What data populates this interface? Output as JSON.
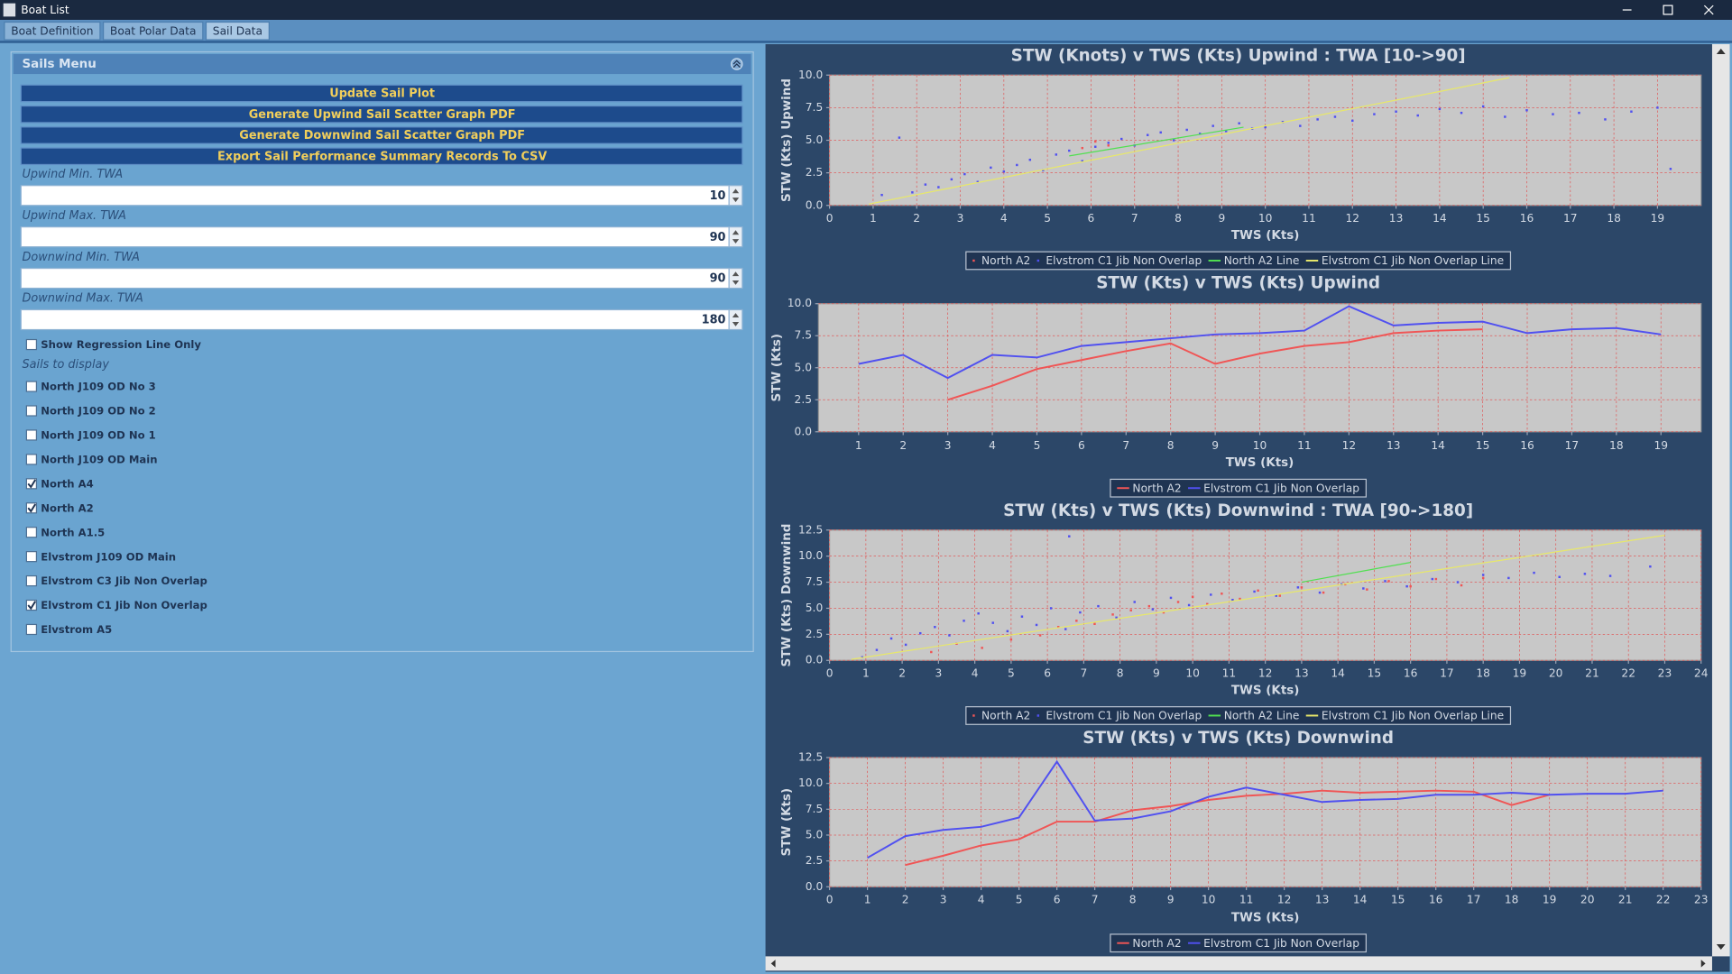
{
  "window": {
    "title": "Boat List"
  },
  "tabs": [
    {
      "label": "Boat Definition",
      "selected": false
    },
    {
      "label": "Boat Polar Data",
      "selected": false
    },
    {
      "label": "Sail Data",
      "selected": true
    }
  ],
  "sails_menu": {
    "title": "Sails Menu",
    "buttons": [
      "Update Sail Plot",
      "Generate Upwind Sail Scatter Graph PDF",
      "Generate Downwind Sail Scatter Graph PDF",
      "Export Sail Performance Summary Records To CSV"
    ],
    "fields": [
      {
        "label": "Upwind Min. TWA",
        "value": 10
      },
      {
        "label": "Upwind Max. TWA",
        "value": 90
      },
      {
        "label": "Downwind Min. TWA",
        "value": 90
      },
      {
        "label": "Downwind Max. TWA",
        "value": 180
      }
    ],
    "regression_option": {
      "label": "Show Regression Line Only",
      "checked": false
    },
    "sails_label": "Sails to display",
    "sails": [
      {
        "name": "North J109 OD No 3",
        "checked": false
      },
      {
        "name": "North J109 OD No 2",
        "checked": false
      },
      {
        "name": "North J109 OD No 1",
        "checked": false
      },
      {
        "name": "North J109 OD Main",
        "checked": false
      },
      {
        "name": "North A4",
        "checked": true
      },
      {
        "name": "North A2",
        "checked": true
      },
      {
        "name": "North A1.5",
        "checked": false
      },
      {
        "name": "Elvstrom J109 OD Main",
        "checked": false
      },
      {
        "name": "Elvstrom C3 Jib Non Overlap",
        "checked": false
      },
      {
        "name": "Elvstrom C1 Jib Non Overlap",
        "checked": true
      },
      {
        "name": "Elvstrom A5",
        "checked": false
      }
    ]
  },
  "chart_data": [
    {
      "type": "scatter",
      "title": "STW (Knots) v TWS (Kts) Upwind  : TWA [10->90]",
      "x_label": "TWS (Kts)",
      "y_label": "STW (Kts) Upwind",
      "xlim": [
        0,
        20
      ],
      "xticks": [
        0,
        1,
        2,
        3,
        4,
        5,
        6,
        7,
        8,
        9,
        10,
        11,
        12,
        13,
        14,
        15,
        16,
        17,
        18,
        19
      ],
      "ylim": [
        0,
        10
      ],
      "yticks": [
        {
          "value": 0,
          "label": "0.0"
        },
        2.5,
        {
          "value": 5,
          "label": "5.0"
        },
        7.5,
        {
          "value": 10,
          "label": "10.0"
        }
      ],
      "grid": true,
      "series": [
        {
          "name": "North A2",
          "color": "#f05555",
          "mark": "point",
          "x": [
            5.8,
            6.1,
            6.4
          ],
          "values": [
            4.4,
            4.9,
            4.6
          ]
        },
        {
          "name": "Elvstrom C1 Jib Non Overlap",
          "color": "#5050f0",
          "mark": "point",
          "x": [
            1.2,
            1.6,
            1.9,
            2.2,
            2.5,
            2.8,
            3.1,
            3.4,
            3.7,
            4.0,
            4.3,
            4.6,
            4.9,
            5.2,
            5.5,
            5.8,
            6.1,
            6.4,
            6.7,
            7.0,
            7.3,
            7.6,
            7.9,
            8.2,
            8.5,
            8.8,
            9.1,
            9.4,
            9.7,
            10.0,
            10.4,
            10.8,
            11.2,
            11.6,
            12.0,
            12.5,
            13.0,
            13.5,
            14.0,
            14.5,
            15.0,
            15.5,
            16.0,
            16.6,
            17.2,
            17.8,
            18.4,
            19.0,
            19.3
          ],
          "values": [
            0.8,
            5.2,
            1.0,
            1.6,
            1.4,
            2.0,
            2.4,
            1.8,
            2.9,
            2.6,
            3.1,
            3.5,
            2.7,
            3.9,
            4.2,
            3.4,
            4.5,
            4.8,
            5.1,
            4.6,
            5.4,
            5.6,
            5.0,
            5.8,
            5.5,
            6.1,
            5.7,
            6.3,
            5.9,
            6.0,
            6.4,
            6.1,
            6.6,
            6.8,
            6.5,
            7.0,
            7.2,
            6.9,
            7.4,
            7.1,
            7.6,
            6.8,
            7.3,
            7.0,
            7.1,
            6.6,
            7.2,
            7.5,
            2.8
          ]
        },
        {
          "name": "North A2 Line",
          "color": "#50e050",
          "mark": "line",
          "x": [
            5.5,
            9.5
          ],
          "values": [
            3.8,
            6.0
          ]
        },
        {
          "name": "Elvstrom C1 Jib Non Overlap Line",
          "color": "#e8e86a",
          "mark": "line",
          "x": [
            0.9,
            15.6
          ],
          "values": [
            0.1,
            9.8
          ]
        }
      ]
    },
    {
      "type": "line",
      "title": "STW (Kts) v TWS (Kts) Upwind",
      "x_label": "TWS (Kts)",
      "y_label": "STW (Kts)",
      "xlim": [
        0.1,
        19.9
      ],
      "xticks": [
        1,
        2,
        3,
        4,
        5,
        6,
        7,
        8,
        9,
        10,
        11,
        12,
        13,
        14,
        15,
        16,
        17,
        18,
        19
      ],
      "ylim": [
        0,
        10
      ],
      "yticks": [
        {
          "value": 0,
          "label": "0.0"
        },
        2.5,
        {
          "value": 5,
          "label": "5.0"
        },
        7.5,
        {
          "value": 10,
          "label": "10.0"
        }
      ],
      "grid": true,
      "series": [
        {
          "name": "North A2",
          "color": "#f05555",
          "x": [
            3,
            4,
            5,
            6,
            7,
            8,
            9,
            10,
            11,
            12,
            13,
            14,
            15
          ],
          "values": [
            2.5,
            3.6,
            4.9,
            5.6,
            6.3,
            6.9,
            5.3,
            6.1,
            6.7,
            7.0,
            7.7,
            7.9,
            8.0
          ]
        },
        {
          "name": "Elvstrom C1 Jib Non Overlap",
          "color": "#5050f0",
          "x": [
            1,
            2,
            3,
            4,
            5,
            6,
            7,
            8,
            9,
            10,
            11,
            12,
            13,
            14,
            15,
            16,
            17,
            18,
            19
          ],
          "values": [
            5.3,
            6.0,
            4.2,
            6.0,
            5.8,
            6.7,
            7.0,
            7.3,
            7.6,
            7.7,
            7.9,
            9.8,
            8.3,
            8.5,
            8.6,
            7.7,
            8.0,
            8.1,
            7.6
          ]
        }
      ]
    },
    {
      "type": "scatter",
      "title": "STW (Kts) v TWS (Kts) Downwind  : TWA [90->180]",
      "x_label": "TWS (Kts)",
      "y_label": "STW (Kts) Downwind",
      "xlim": [
        0,
        24
      ],
      "xticks": [
        0,
        1,
        2,
        3,
        4,
        5,
        6,
        7,
        8,
        9,
        10,
        11,
        12,
        13,
        14,
        15,
        16,
        17,
        18,
        19,
        20,
        21,
        22,
        23,
        24
      ],
      "ylim": [
        0,
        12.5
      ],
      "yticks": [
        {
          "value": 0,
          "label": "0.0"
        },
        2.5,
        {
          "value": 5,
          "label": "5.0"
        },
        7.5,
        {
          "value": 10,
          "label": "10.0"
        },
        12.5
      ],
      "grid": true,
      "series": [
        {
          "name": "North A2",
          "color": "#f05555",
          "mark": "point",
          "x": [
            2.8,
            3.5,
            4.2,
            5.0,
            5.8,
            6.3,
            6.8,
            7.3,
            7.8,
            8.3,
            8.8,
            9.2,
            9.6,
            10.0,
            10.4,
            10.8,
            11.3,
            11.8,
            12.4,
            13.0,
            13.6,
            14.2,
            14.8,
            15.4,
            16.0,
            16.7,
            17.4,
            18.0
          ],
          "values": [
            0.8,
            1.6,
            1.2,
            2.0,
            2.4,
            3.2,
            3.8,
            3.5,
            4.4,
            4.8,
            5.2,
            4.6,
            5.6,
            6.1,
            5.4,
            6.4,
            5.9,
            6.7,
            6.2,
            7.0,
            6.5,
            7.3,
            6.8,
            7.6,
            7.1,
            7.8,
            7.2,
            7.9
          ]
        },
        {
          "name": "Elvstrom C1 Jib Non Overlap",
          "color": "#5050f0",
          "mark": "point",
          "x": [
            0.9,
            1.3,
            1.7,
            2.1,
            2.5,
            2.9,
            3.3,
            3.7,
            4.1,
            4.5,
            4.9,
            5.3,
            5.7,
            6.1,
            6.5,
            6.9,
            7.4,
            7.9,
            8.4,
            8.9,
            9.4,
            9.9,
            10.5,
            11.1,
            11.7,
            12.3,
            12.9,
            13.5,
            14.1,
            14.7,
            15.3,
            15.9,
            16.6,
            17.3,
            18.0,
            18.7,
            19.4,
            20.1,
            20.8,
            21.5,
            22.6,
            6.6
          ],
          "values": [
            0.3,
            1.0,
            2.1,
            1.5,
            2.6,
            3.2,
            2.4,
            3.8,
            4.5,
            3.6,
            2.8,
            4.2,
            3.4,
            5.0,
            3.0,
            4.6,
            5.2,
            4.1,
            5.6,
            4.9,
            6.0,
            5.3,
            6.3,
            5.8,
            6.6,
            6.2,
            7.0,
            6.5,
            7.3,
            6.9,
            7.6,
            7.1,
            7.8,
            7.5,
            8.2,
            7.9,
            8.4,
            8.0,
            8.3,
            8.1,
            9.0,
            11.9
          ]
        },
        {
          "name": "North A2 Line",
          "color": "#50e050",
          "mark": "line",
          "x": [
            13,
            16
          ],
          "values": [
            7.5,
            9.4
          ]
        },
        {
          "name": "Elvstrom C1 Jib Non Overlap Line",
          "color": "#e8e86a",
          "mark": "line",
          "x": [
            0.6,
            23
          ],
          "values": [
            0.1,
            12.0
          ]
        }
      ]
    },
    {
      "type": "line",
      "title": "STW (Kts) v TWS (Kts) Downwind",
      "x_label": "TWS (Kts)",
      "y_label": "STW (Kts)",
      "xlim": [
        0,
        23
      ],
      "xticks": [
        0,
        1,
        2,
        3,
        4,
        5,
        6,
        7,
        8,
        9,
        10,
        11,
        12,
        13,
        14,
        15,
        16,
        17,
        18,
        19,
        20,
        21,
        22,
        23
      ],
      "ylim": [
        0,
        12.5
      ],
      "yticks": [
        {
          "value": 0,
          "label": "0.0"
        },
        2.5,
        {
          "value": 5,
          "label": "5.0"
        },
        7.5,
        {
          "value": 10,
          "label": "10.0"
        },
        12.5
      ],
      "grid": true,
      "series": [
        {
          "name": "North A2",
          "color": "#f05555",
          "x": [
            2,
            3,
            4,
            5,
            6,
            7,
            8,
            9,
            10,
            11,
            12,
            13,
            14,
            15,
            16,
            17,
            18,
            19
          ],
          "values": [
            2.1,
            3.0,
            4.0,
            4.6,
            6.3,
            6.3,
            7.4,
            7.8,
            8.4,
            8.8,
            9.0,
            9.3,
            9.1,
            9.2,
            9.3,
            9.2,
            7.9,
            8.9
          ]
        },
        {
          "name": "Elvstrom C1 Jib Non Overlap",
          "color": "#5050f0",
          "x": [
            1,
            2,
            3,
            4,
            5,
            6,
            7,
            8,
            9,
            10,
            11,
            12,
            13,
            14,
            15,
            16,
            17,
            18,
            19,
            20,
            21,
            22
          ],
          "values": [
            2.8,
            4.9,
            5.5,
            5.8,
            6.7,
            12.1,
            6.4,
            6.6,
            7.3,
            8.7,
            9.6,
            8.9,
            8.2,
            8.4,
            8.5,
            8.9,
            8.9,
            9.1,
            8.9,
            9.0,
            9.0,
            9.3
          ]
        }
      ]
    }
  ]
}
